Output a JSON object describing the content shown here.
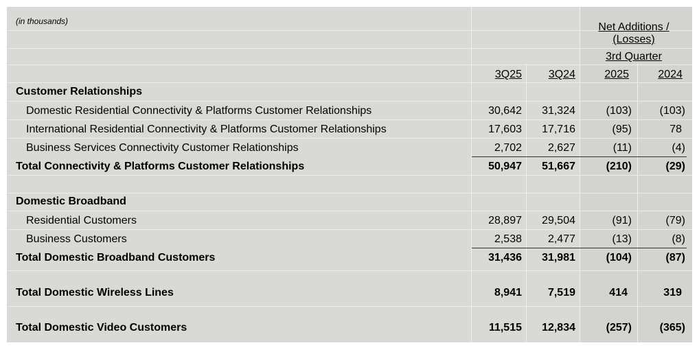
{
  "note": "(in thousands)",
  "header": {
    "net_additions": "Net Additions /",
    "losses": "(Losses)",
    "quarter": "3rd Quarter",
    "cols": [
      "3Q25",
      "3Q24",
      "2025",
      "2024"
    ]
  },
  "sections": {
    "customer_relationships": {
      "title": "Customer Relationships",
      "rows": [
        {
          "label": "Domestic Residential Connectivity & Platforms Customer Relationships",
          "v": [
            "30,642",
            "31,324",
            "(103)",
            "(103)"
          ]
        },
        {
          "label": "International Residential Connectivity & Platforms Customer Relationships",
          "v": [
            "17,603",
            "17,716",
            "(95)",
            "78"
          ]
        },
        {
          "label": "Business Services Connectivity Customer Relationships",
          "v": [
            "2,702",
            "2,627",
            "(11)",
            "(4)"
          ]
        }
      ],
      "total": {
        "label": "Total Connectivity & Platforms Customer Relationships",
        "v": [
          "50,947",
          "51,667",
          "(210)",
          "(29)"
        ]
      }
    },
    "domestic_broadband": {
      "title": "Domestic Broadband",
      "rows": [
        {
          "label": "Residential Customers",
          "v": [
            "28,897",
            "29,504",
            "(91)",
            "(79)"
          ]
        },
        {
          "label": "Business Customers",
          "v": [
            "2,538",
            "2,477",
            "(13)",
            "(8)"
          ]
        }
      ],
      "total": {
        "label": "Total Domestic Broadband Customers",
        "v": [
          "31,436",
          "31,981",
          "(104)",
          "(87)"
        ]
      }
    },
    "wireless": {
      "label": "Total Domestic Wireless Lines",
      "v": [
        "8,941",
        "7,519",
        "414",
        "319"
      ]
    },
    "video": {
      "label": "Total Domestic Video Customers",
      "v": [
        "11,515",
        "12,834",
        "(257)",
        "(365)"
      ]
    }
  }
}
